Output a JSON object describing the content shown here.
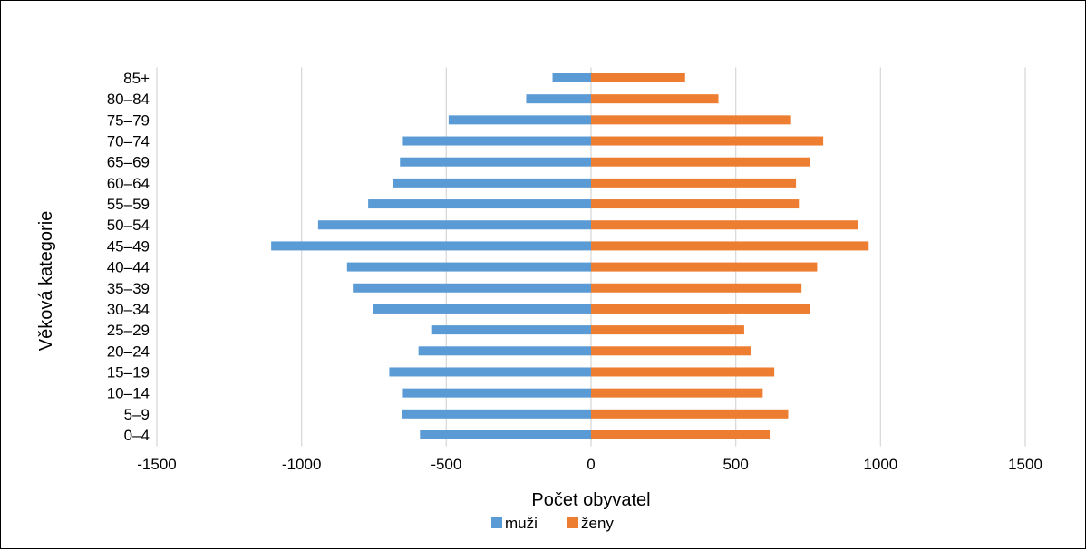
{
  "chart_data": {
    "type": "bar",
    "orientation": "horizontal",
    "categories": [
      "0–4",
      "5–9",
      "10–14",
      "15–19",
      "20–24",
      "25–29",
      "30–34",
      "35–39",
      "40–44",
      "45–49",
      "50–54",
      "55–59",
      "60–64",
      "65–69",
      "70–74",
      "75–79",
      "80–84",
      "85+"
    ],
    "series": [
      {
        "name": "muži",
        "color": "#5b9bd5",
        "values": [
          -591,
          -652,
          -650,
          -697,
          -596,
          -549,
          -753,
          -823,
          -843,
          -1105,
          -943,
          -770,
          -683,
          -660,
          -650,
          -492,
          -224,
          -133
        ]
      },
      {
        "name": "ženy",
        "color": "#ed7d31",
        "values": [
          617,
          681,
          593,
          633,
          553,
          529,
          757,
          727,
          781,
          959,
          922,
          718,
          708,
          755,
          802,
          691,
          440,
          325
        ]
      }
    ],
    "xlabel": "Počet obyvatel",
    "ylabel": "Věková kategorie",
    "xlim": [
      -1500,
      1500
    ],
    "xticks": [
      "-1500",
      "-1000",
      "-500",
      "0",
      "500",
      "1000",
      "1500"
    ],
    "grid": true,
    "legend_position": "bottom"
  }
}
